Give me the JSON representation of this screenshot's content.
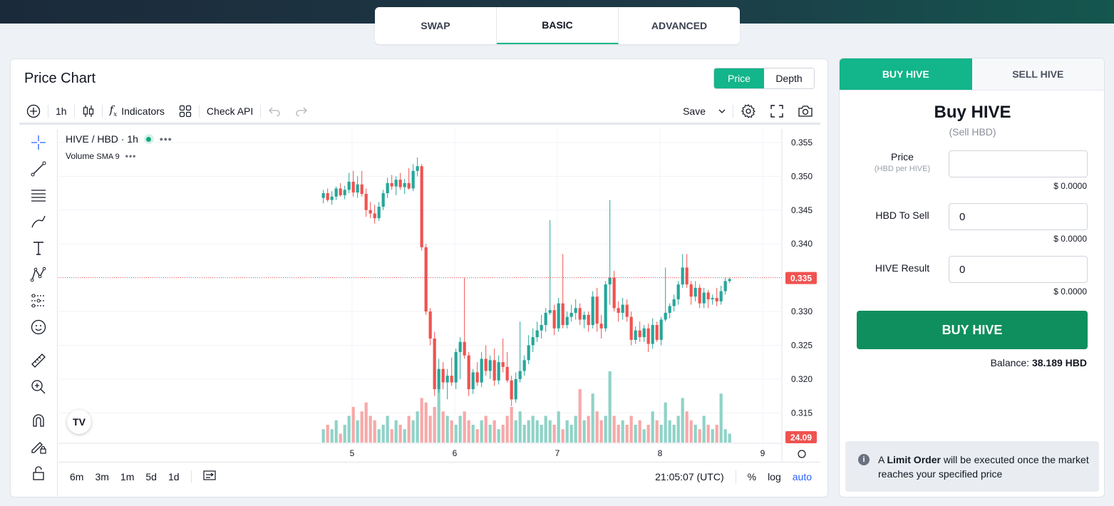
{
  "mode_tabs": [
    {
      "label": "SWAP",
      "active": false
    },
    {
      "label": "BASIC",
      "active": true
    },
    {
      "label": "ADVANCED",
      "active": false
    }
  ],
  "chart_panel": {
    "title": "Price Chart",
    "toggle": {
      "price": "Price",
      "depth": "Depth",
      "active": "price"
    },
    "toolbar": {
      "interval": "1h",
      "indicators": "Indicators",
      "check_api": "Check API",
      "save": "Save"
    },
    "legend": {
      "symbol": "HIVE / HBD · 1h",
      "volume": "Volume",
      "volume_sma": "SMA 9"
    },
    "last_price_label": "0.335",
    "volume_label": "24.09",
    "bottom": {
      "ranges": [
        "6m",
        "3m",
        "1m",
        "5d",
        "1d"
      ],
      "clock": "21:05:07 (UTC)",
      "percent": "%",
      "log": "log",
      "auto": "auto"
    }
  },
  "chart_data": {
    "type": "candlestick",
    "y_ticks": [
      "0.355",
      "0.350",
      "0.345",
      "0.340",
      "0.335",
      "0.330",
      "0.325",
      "0.320",
      "0.315"
    ],
    "x_ticks": [
      "5",
      "6",
      "7",
      "8",
      "9"
    ],
    "ylim": [
      0.3105,
      0.357
    ],
    "last_price": 0.335,
    "last_volume": 24.09,
    "colors": {
      "up": "#26a69a",
      "down": "#ef5350",
      "vol_up": "#8fd3c7",
      "vol_down": "#f7a9a8"
    },
    "x_start": 4.72,
    "x_step": 0.0416667,
    "candles": [
      {
        "o": 0.3468,
        "h": 0.348,
        "l": 0.346,
        "c": 0.3475,
        "v": 3
      },
      {
        "o": 0.3475,
        "h": 0.3482,
        "l": 0.3462,
        "c": 0.3465,
        "v": 4
      },
      {
        "o": 0.3465,
        "h": 0.3478,
        "l": 0.3458,
        "c": 0.347,
        "v": 3
      },
      {
        "o": 0.347,
        "h": 0.3485,
        "l": 0.3465,
        "c": 0.3482,
        "v": 5
      },
      {
        "o": 0.3482,
        "h": 0.349,
        "l": 0.347,
        "c": 0.3472,
        "v": 2
      },
      {
        "o": 0.3472,
        "h": 0.3486,
        "l": 0.3466,
        "c": 0.348,
        "v": 4
      },
      {
        "o": 0.348,
        "h": 0.3505,
        "l": 0.3475,
        "c": 0.3492,
        "v": 6
      },
      {
        "o": 0.3492,
        "h": 0.3508,
        "l": 0.347,
        "c": 0.3476,
        "v": 8
      },
      {
        "o": 0.3476,
        "h": 0.35,
        "l": 0.3468,
        "c": 0.3488,
        "v": 5
      },
      {
        "o": 0.3488,
        "h": 0.3508,
        "l": 0.347,
        "c": 0.3474,
        "v": 7
      },
      {
        "o": 0.3474,
        "h": 0.3482,
        "l": 0.344,
        "c": 0.345,
        "v": 9
      },
      {
        "o": 0.345,
        "h": 0.3462,
        "l": 0.3438,
        "c": 0.3445,
        "v": 6
      },
      {
        "o": 0.3445,
        "h": 0.3458,
        "l": 0.343,
        "c": 0.3438,
        "v": 5
      },
      {
        "o": 0.3438,
        "h": 0.3462,
        "l": 0.3434,
        "c": 0.3455,
        "v": 3
      },
      {
        "o": 0.3455,
        "h": 0.348,
        "l": 0.345,
        "c": 0.3475,
        "v": 4
      },
      {
        "o": 0.3475,
        "h": 0.3498,
        "l": 0.3468,
        "c": 0.349,
        "v": 6
      },
      {
        "o": 0.349,
        "h": 0.3502,
        "l": 0.348,
        "c": 0.3485,
        "v": 3
      },
      {
        "o": 0.3485,
        "h": 0.35,
        "l": 0.3472,
        "c": 0.3495,
        "v": 5
      },
      {
        "o": 0.3495,
        "h": 0.3505,
        "l": 0.348,
        "c": 0.3484,
        "v": 4
      },
      {
        "o": 0.3484,
        "h": 0.3496,
        "l": 0.3474,
        "c": 0.349,
        "v": 3
      },
      {
        "o": 0.349,
        "h": 0.3512,
        "l": 0.348,
        "c": 0.3482,
        "v": 6
      },
      {
        "o": 0.3482,
        "h": 0.3518,
        "l": 0.3478,
        "c": 0.3508,
        "v": 5
      },
      {
        "o": 0.3508,
        "h": 0.3528,
        "l": 0.35,
        "c": 0.3515,
        "v": 7
      },
      {
        "o": 0.3515,
        "h": 0.3518,
        "l": 0.339,
        "c": 0.3395,
        "v": 10
      },
      {
        "o": 0.3395,
        "h": 0.34,
        "l": 0.3295,
        "c": 0.33,
        "v": 9
      },
      {
        "o": 0.33,
        "h": 0.3305,
        "l": 0.325,
        "c": 0.326,
        "v": 6
      },
      {
        "o": 0.326,
        "h": 0.327,
        "l": 0.3175,
        "c": 0.3185,
        "v": 8
      },
      {
        "o": 0.3185,
        "h": 0.323,
        "l": 0.318,
        "c": 0.3215,
        "v": 12
      },
      {
        "o": 0.3215,
        "h": 0.3225,
        "l": 0.3185,
        "c": 0.3195,
        "v": 7
      },
      {
        "o": 0.3195,
        "h": 0.3215,
        "l": 0.317,
        "c": 0.3205,
        "v": 6
      },
      {
        "o": 0.3205,
        "h": 0.3232,
        "l": 0.319,
        "c": 0.3195,
        "v": 5
      },
      {
        "o": 0.3195,
        "h": 0.3245,
        "l": 0.3185,
        "c": 0.324,
        "v": 4
      },
      {
        "o": 0.324,
        "h": 0.3262,
        "l": 0.32,
        "c": 0.3255,
        "v": 6
      },
      {
        "o": 0.3255,
        "h": 0.335,
        "l": 0.323,
        "c": 0.3235,
        "v": 7
      },
      {
        "o": 0.3235,
        "h": 0.324,
        "l": 0.3175,
        "c": 0.3185,
        "v": 5
      },
      {
        "o": 0.3185,
        "h": 0.3215,
        "l": 0.3178,
        "c": 0.321,
        "v": 4
      },
      {
        "o": 0.321,
        "h": 0.3225,
        "l": 0.319,
        "c": 0.3195,
        "v": 3
      },
      {
        "o": 0.3195,
        "h": 0.324,
        "l": 0.3188,
        "c": 0.323,
        "v": 5
      },
      {
        "o": 0.323,
        "h": 0.325,
        "l": 0.3205,
        "c": 0.3212,
        "v": 6
      },
      {
        "o": 0.3212,
        "h": 0.3235,
        "l": 0.32,
        "c": 0.3228,
        "v": 4
      },
      {
        "o": 0.3228,
        "h": 0.3245,
        "l": 0.319,
        "c": 0.3198,
        "v": 5
      },
      {
        "o": 0.3198,
        "h": 0.3235,
        "l": 0.3192,
        "c": 0.3225,
        "v": 3
      },
      {
        "o": 0.3225,
        "h": 0.326,
        "l": 0.321,
        "c": 0.3218,
        "v": 4
      },
      {
        "o": 0.3218,
        "h": 0.324,
        "l": 0.3195,
        "c": 0.3198,
        "v": 6
      },
      {
        "o": 0.3198,
        "h": 0.3205,
        "l": 0.316,
        "c": 0.317,
        "v": 8
      },
      {
        "o": 0.317,
        "h": 0.321,
        "l": 0.3165,
        "c": 0.32,
        "v": 5
      },
      {
        "o": 0.32,
        "h": 0.3285,
        "l": 0.3195,
        "c": 0.3212,
        "v": 7
      },
      {
        "o": 0.3212,
        "h": 0.3235,
        "l": 0.3205,
        "c": 0.3228,
        "v": 4
      },
      {
        "o": 0.3228,
        "h": 0.3265,
        "l": 0.3222,
        "c": 0.325,
        "v": 5
      },
      {
        "o": 0.325,
        "h": 0.3275,
        "l": 0.324,
        "c": 0.3262,
        "v": 6
      },
      {
        "o": 0.3262,
        "h": 0.3285,
        "l": 0.3255,
        "c": 0.3272,
        "v": 5
      },
      {
        "o": 0.3272,
        "h": 0.3295,
        "l": 0.326,
        "c": 0.328,
        "v": 4
      },
      {
        "o": 0.328,
        "h": 0.3305,
        "l": 0.327,
        "c": 0.3298,
        "v": 6
      },
      {
        "o": 0.3298,
        "h": 0.3435,
        "l": 0.3295,
        "c": 0.3302,
        "v": 5
      },
      {
        "o": 0.3302,
        "h": 0.331,
        "l": 0.3265,
        "c": 0.3275,
        "v": 4
      },
      {
        "o": 0.3275,
        "h": 0.332,
        "l": 0.327,
        "c": 0.3312,
        "v": 7
      },
      {
        "o": 0.3312,
        "h": 0.3385,
        "l": 0.3275,
        "c": 0.328,
        "v": 3
      },
      {
        "o": 0.328,
        "h": 0.33,
        "l": 0.3275,
        "c": 0.3292,
        "v": 5
      },
      {
        "o": 0.3292,
        "h": 0.331,
        "l": 0.3285,
        "c": 0.3298,
        "v": 4
      },
      {
        "o": 0.3298,
        "h": 0.3318,
        "l": 0.3288,
        "c": 0.3305,
        "v": 6
      },
      {
        "o": 0.3305,
        "h": 0.3312,
        "l": 0.328,
        "c": 0.3288,
        "v": 12
      },
      {
        "o": 0.3288,
        "h": 0.33,
        "l": 0.3275,
        "c": 0.3295,
        "v": 5
      },
      {
        "o": 0.3295,
        "h": 0.33,
        "l": 0.327,
        "c": 0.328,
        "v": 6
      },
      {
        "o": 0.328,
        "h": 0.333,
        "l": 0.3275,
        "c": 0.3322,
        "v": 11
      },
      {
        "o": 0.3322,
        "h": 0.3335,
        "l": 0.327,
        "c": 0.3282,
        "v": 7
      },
      {
        "o": 0.3282,
        "h": 0.3295,
        "l": 0.326,
        "c": 0.3275,
        "v": 5
      },
      {
        "o": 0.3275,
        "h": 0.3345,
        "l": 0.327,
        "c": 0.334,
        "v": 6
      },
      {
        "o": 0.334,
        "h": 0.3465,
        "l": 0.331,
        "c": 0.335,
        "v": 16
      },
      {
        "o": 0.335,
        "h": 0.336,
        "l": 0.33,
        "c": 0.3305,
        "v": 6
      },
      {
        "o": 0.3305,
        "h": 0.3315,
        "l": 0.3285,
        "c": 0.3298,
        "v": 4
      },
      {
        "o": 0.3298,
        "h": 0.332,
        "l": 0.3288,
        "c": 0.331,
        "v": 5
      },
      {
        "o": 0.331,
        "h": 0.3318,
        "l": 0.3285,
        "c": 0.3292,
        "v": 4
      },
      {
        "o": 0.3292,
        "h": 0.33,
        "l": 0.325,
        "c": 0.3258,
        "v": 6
      },
      {
        "o": 0.3258,
        "h": 0.3278,
        "l": 0.3252,
        "c": 0.3272,
        "v": 4
      },
      {
        "o": 0.3272,
        "h": 0.3285,
        "l": 0.3255,
        "c": 0.3262,
        "v": 5
      },
      {
        "o": 0.3262,
        "h": 0.328,
        "l": 0.3255,
        "c": 0.3275,
        "v": 3
      },
      {
        "o": 0.3275,
        "h": 0.3282,
        "l": 0.324,
        "c": 0.3252,
        "v": 4
      },
      {
        "o": 0.3252,
        "h": 0.329,
        "l": 0.3245,
        "c": 0.328,
        "v": 7
      },
      {
        "o": 0.328,
        "h": 0.3285,
        "l": 0.3255,
        "c": 0.3258,
        "v": 5
      },
      {
        "o": 0.3258,
        "h": 0.3292,
        "l": 0.325,
        "c": 0.3288,
        "v": 4
      },
      {
        "o": 0.3288,
        "h": 0.3365,
        "l": 0.3285,
        "c": 0.3298,
        "v": 9
      },
      {
        "o": 0.3298,
        "h": 0.3312,
        "l": 0.329,
        "c": 0.3308,
        "v": 5
      },
      {
        "o": 0.3308,
        "h": 0.3325,
        "l": 0.33,
        "c": 0.3318,
        "v": 4
      },
      {
        "o": 0.3318,
        "h": 0.3345,
        "l": 0.331,
        "c": 0.334,
        "v": 6
      },
      {
        "o": 0.334,
        "h": 0.3385,
        "l": 0.3335,
        "c": 0.3365,
        "v": 10
      },
      {
        "o": 0.3365,
        "h": 0.3385,
        "l": 0.3335,
        "c": 0.334,
        "v": 7
      },
      {
        "o": 0.334,
        "h": 0.3345,
        "l": 0.331,
        "c": 0.3322,
        "v": 5
      },
      {
        "o": 0.3322,
        "h": 0.3345,
        "l": 0.3315,
        "c": 0.3335,
        "v": 4
      },
      {
        "o": 0.3335,
        "h": 0.334,
        "l": 0.3305,
        "c": 0.3312,
        "v": 3
      },
      {
        "o": 0.3312,
        "h": 0.3335,
        "l": 0.3305,
        "c": 0.3328,
        "v": 6
      },
      {
        "o": 0.3328,
        "h": 0.3332,
        "l": 0.3305,
        "c": 0.3318,
        "v": 4
      },
      {
        "o": 0.3318,
        "h": 0.3325,
        "l": 0.331,
        "c": 0.332,
        "v": 3
      },
      {
        "o": 0.332,
        "h": 0.3335,
        "l": 0.3308,
        "c": 0.3315,
        "v": 4
      },
      {
        "o": 0.3315,
        "h": 0.3338,
        "l": 0.331,
        "c": 0.333,
        "v": 11
      },
      {
        "o": 0.333,
        "h": 0.335,
        "l": 0.3325,
        "c": 0.3345,
        "v": 3
      },
      {
        "o": 0.3345,
        "h": 0.335,
        "l": 0.3342,
        "c": 0.3348,
        "v": 2
      }
    ]
  },
  "order_panel": {
    "tabs": [
      {
        "label": "BUY HIVE",
        "active": true
      },
      {
        "label": "SELL HIVE",
        "active": false
      }
    ],
    "title": "Buy HIVE",
    "subtitle": "(Sell HBD)",
    "price_label": "Price",
    "price_sub": "(HBD per HIVE)",
    "price_value": "",
    "price_usd": "$ 0.0000",
    "hbd_label": "HBD To Sell",
    "hbd_value": "0",
    "hbd_usd": "$ 0.0000",
    "hive_label": "HIVE Result",
    "hive_value": "0",
    "hive_usd": "$ 0.0000",
    "submit": "BUY HIVE",
    "balance_label": "Balance:",
    "balance_value": "38.189 HBD",
    "note_pre": "A",
    "note_bold": "Limit Order",
    "note_post": "will be executed once the market reaches your specified price"
  }
}
